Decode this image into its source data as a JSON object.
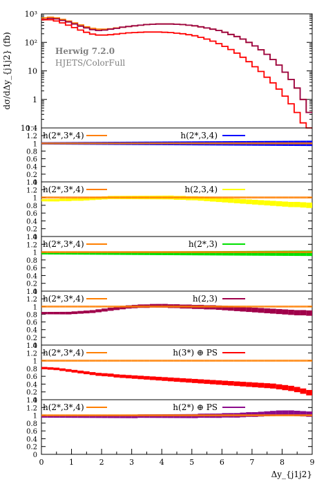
{
  "chart_data": {
    "type": "line",
    "xlabel": "Δy_{j1j2}",
    "x_ticks": [
      "0",
      "1",
      "2",
      "3",
      "4",
      "5",
      "6",
      "7",
      "8",
      "9"
    ],
    "xlim": [
      0,
      9
    ],
    "main": {
      "ylabel": "dσ/dΔy_{j1j2} (fb)",
      "yscale": "log",
      "ylim": [
        0.1,
        1000
      ],
      "y_ticks": [
        "10⁻¹",
        "1",
        "10",
        "10²",
        "10³"
      ],
      "y_tick_values": [
        0.1,
        1,
        10,
        100,
        1000
      ],
      "annotations": [
        "Herwig 7.2.0",
        "HJETS/ColorFull"
      ],
      "x": [
        0.1,
        0.3,
        0.5,
        0.7,
        0.9,
        1.1,
        1.3,
        1.5,
        1.7,
        1.9,
        2.1,
        2.3,
        2.5,
        2.7,
        2.9,
        3.1,
        3.3,
        3.5,
        3.7,
        3.9,
        4.1,
        4.3,
        4.5,
        4.7,
        4.9,
        5.1,
        5.3,
        5.5,
        5.7,
        5.9,
        6.1,
        6.3,
        6.5,
        6.7,
        6.9,
        7.1,
        7.3,
        7.5,
        7.7,
        7.9,
        8.1,
        8.3,
        8.5,
        8.7,
        8.9
      ],
      "series": [
        {
          "name": "h(2*,3*,4)",
          "color": "#ff7f00",
          "values": [
            720,
            760,
            720,
            640,
            560,
            480,
            410,
            350,
            310,
            290,
            290,
            300,
            320,
            340,
            360,
            380,
            400,
            420,
            430,
            440,
            440,
            440,
            430,
            420,
            400,
            380,
            350,
            320,
            290,
            260,
            225,
            190,
            160,
            130,
            100,
            75,
            55,
            38,
            25,
            16,
            9,
            5,
            2.5,
            1.0,
            0.35
          ]
        },
        {
          "name": "h(2,3)",
          "color": "#990044",
          "values": [
            640,
            690,
            660,
            590,
            520,
            440,
            370,
            320,
            280,
            260,
            270,
            290,
            310,
            340,
            360,
            380,
            400,
            420,
            430,
            440,
            440,
            440,
            430,
            420,
            400,
            380,
            350,
            320,
            290,
            260,
            225,
            190,
            160,
            130,
            100,
            75,
            55,
            38,
            25,
            16,
            9,
            5,
            2.5,
            1.0,
            0.35
          ]
        },
        {
          "name": "h(3*) ⊕ PS",
          "color": "#ff0000",
          "values": [
            620,
            620,
            560,
            480,
            400,
            330,
            270,
            225,
            195,
            180,
            180,
            185,
            195,
            205,
            215,
            220,
            225,
            230,
            230,
            230,
            225,
            220,
            210,
            200,
            185,
            170,
            150,
            130,
            110,
            90,
            72,
            56,
            42,
            30,
            21,
            14,
            9.5,
            6,
            3.8,
            2.3,
            1.3,
            0.7,
            0.35,
            0.15,
            0.1
          ]
        }
      ]
    },
    "ratio_panels": {
      "ylim": [
        0,
        1.4
      ],
      "y_ticks": [
        "0",
        "0.2",
        "0.4",
        "0.6",
        "0.8",
        "1",
        "1.2",
        "1.4"
      ],
      "y_tick_values": [
        0,
        0.2,
        0.4,
        0.6,
        0.8,
        1.0,
        1.2,
        1.4
      ],
      "x": [
        0.1,
        0.3,
        0.5,
        0.7,
        0.9,
        1.1,
        1.3,
        1.5,
        1.7,
        1.9,
        2.1,
        2.3,
        2.5,
        2.7,
        2.9,
        3.1,
        3.3,
        3.5,
        3.7,
        3.9,
        4.1,
        4.3,
        4.5,
        4.7,
        4.9,
        5.1,
        5.3,
        5.5,
        5.7,
        5.9,
        6.1,
        6.3,
        6.5,
        6.7,
        6.9,
        7.1,
        7.3,
        7.5,
        7.7,
        7.9,
        8.1,
        8.3,
        8.5,
        8.7,
        8.9
      ],
      "panels": [
        {
          "reference": {
            "label": "h(2*,3*,4)",
            "color": "#ff7f00",
            "values": [
              1,
              1,
              1,
              1,
              1,
              1,
              1,
              1,
              1,
              1,
              1,
              1,
              1,
              1,
              1,
              1,
              1,
              1,
              1,
              1,
              1,
              1,
              1,
              1,
              1,
              1,
              1,
              1,
              1,
              1,
              1,
              1,
              1,
              1,
              1,
              1,
              1,
              1,
              1,
              1,
              1,
              1,
              1,
              1,
              1
            ]
          },
          "comparison": {
            "label": "h(2*,3,4)",
            "color": "#0000ff",
            "values": [
              1,
              1,
              1,
              1,
              1,
              1,
              1,
              1,
              1,
              1,
              1,
              1,
              1,
              1,
              1,
              1,
              1,
              1,
              1,
              1,
              1,
              1,
              1,
              1,
              1,
              1,
              1,
              1,
              1,
              1,
              1,
              1,
              1,
              1,
              1,
              1,
              1,
              1,
              1,
              1,
              1,
              1,
              1,
              1,
              1
            ]
          }
        },
        {
          "reference": {
            "label": "h(2*,3*,4)",
            "color": "#ff7f00",
            "values": [
              1,
              1,
              1,
              1,
              1,
              1,
              1,
              1,
              1,
              1,
              1,
              1,
              1,
              1,
              1,
              1,
              1,
              1,
              1,
              1,
              1,
              1,
              1,
              1,
              1,
              1,
              1,
              1,
              1,
              1,
              1,
              1,
              1,
              1,
              1,
              1,
              1,
              1,
              1,
              1,
              1,
              1,
              1,
              1,
              1
            ]
          },
          "comparison": {
            "label": "h(2,3,4)",
            "color": "#ffff00",
            "values": [
              0.93,
              0.93,
              0.93,
              0.94,
              0.94,
              0.95,
              0.95,
              0.96,
              0.97,
              0.98,
              0.99,
              1.0,
              1.0,
              1.0,
              1.0,
              1.0,
              1.0,
              1.0,
              1.0,
              1.0,
              1.0,
              1.0,
              0.99,
              0.99,
              0.98,
              0.98,
              0.97,
              0.96,
              0.95,
              0.94,
              0.93,
              0.92,
              0.91,
              0.9,
              0.89,
              0.88,
              0.87,
              0.86,
              0.85,
              0.84,
              0.83,
              0.82,
              0.82,
              0.81,
              0.8
            ]
          }
        },
        {
          "reference": {
            "label": "h(2*,3*,4)",
            "color": "#ff7f00",
            "values": [
              1,
              1,
              1,
              1,
              1,
              1,
              1,
              1,
              1,
              1,
              1,
              1,
              1,
              1,
              1,
              1,
              1,
              1,
              1,
              1,
              1,
              1,
              1,
              1,
              1,
              1,
              1,
              1,
              1,
              1,
              1,
              1,
              1,
              1,
              1,
              1,
              1,
              1,
              1,
              1,
              1,
              1,
              1,
              1,
              1
            ]
          },
          "comparison": {
            "label": "h(2*,3)",
            "color": "#00e000",
            "values": [
              0.97,
              0.97,
              0.97,
              0.97,
              0.97,
              0.97,
              0.97,
              0.97,
              0.97,
              0.97,
              0.97,
              0.97,
              0.97,
              0.97,
              0.97,
              0.97,
              0.97,
              0.97,
              0.97,
              0.97,
              0.97,
              0.97,
              0.97,
              0.97,
              0.97,
              0.97,
              0.97,
              0.97,
              0.97,
              0.97,
              0.97,
              0.97,
              0.97,
              0.97,
              0.97,
              0.97,
              0.97,
              0.97,
              0.97,
              0.97,
              0.97,
              0.97,
              0.97,
              0.97,
              0.97
            ]
          }
        },
        {
          "reference": {
            "label": "h(2*,3*,4)",
            "color": "#ff7f00",
            "values": [
              1,
              1,
              1,
              1,
              1,
              1,
              1,
              1,
              1,
              1,
              1,
              1,
              1,
              1,
              1,
              1,
              1,
              1,
              1,
              1,
              1,
              1,
              1,
              1,
              1,
              1,
              1,
              1,
              1,
              1,
              1,
              1,
              1,
              1,
              1,
              1,
              1,
              1,
              1,
              1,
              1,
              1,
              1,
              1,
              1
            ]
          },
          "comparison": {
            "label": "h(2,3)",
            "color": "#a0004a",
            "values": [
              0.83,
              0.83,
              0.83,
              0.83,
              0.83,
              0.84,
              0.85,
              0.86,
              0.87,
              0.89,
              0.91,
              0.93,
              0.95,
              0.97,
              0.99,
              1.0,
              1.01,
              1.01,
              1.02,
              1.02,
              1.02,
              1.01,
              1.01,
              1.0,
              1.0,
              0.99,
              0.99,
              0.98,
              0.98,
              0.97,
              0.96,
              0.95,
              0.94,
              0.93,
              0.92,
              0.91,
              0.9,
              0.89,
              0.88,
              0.87,
              0.86,
              0.85,
              0.84,
              0.84,
              0.83
            ]
          }
        },
        {
          "reference": {
            "label": "h(2*,3*,4)",
            "color": "#ff7f00",
            "values": [
              1,
              1,
              1,
              1,
              1,
              1,
              1,
              1,
              1,
              1,
              1,
              1,
              1,
              1,
              1,
              1,
              1,
              1,
              1,
              1,
              1,
              1,
              1,
              1,
              1,
              1,
              1,
              1,
              1,
              1,
              1,
              1,
              1,
              1,
              1,
              1,
              1,
              1,
              1,
              1,
              1,
              1,
              1,
              1,
              1
            ]
          },
          "comparison": {
            "label": "h(3*) ⊕ PS",
            "color": "#ff0000",
            "values": [
              0.81,
              0.8,
              0.79,
              0.77,
              0.75,
              0.73,
              0.71,
              0.69,
              0.67,
              0.65,
              0.64,
              0.63,
              0.61,
              0.6,
              0.59,
              0.58,
              0.57,
              0.56,
              0.55,
              0.54,
              0.53,
              0.52,
              0.51,
              0.5,
              0.49,
              0.48,
              0.47,
              0.46,
              0.45,
              0.44,
              0.43,
              0.42,
              0.41,
              0.4,
              0.39,
              0.38,
              0.37,
              0.36,
              0.35,
              0.33,
              0.31,
              0.29,
              0.26,
              0.22,
              0.18
            ]
          }
        },
        {
          "reference": {
            "label": "h(2*,3*,4)",
            "color": "#ff7f00",
            "values": [
              1,
              1,
              1,
              1,
              1,
              1,
              1,
              1,
              1,
              1,
              1,
              1,
              1,
              1,
              1,
              1,
              1,
              1,
              1,
              1,
              1,
              1,
              1,
              1,
              1,
              1,
              1,
              1,
              1,
              1,
              1,
              1,
              1,
              1,
              1,
              1,
              1,
              1,
              1,
              1,
              1,
              1,
              1,
              1,
              1
            ]
          },
          "comparison": {
            "label": "h(2*) ⊕ PS",
            "color": "#8b0a8b",
            "values": [
              0.97,
              0.97,
              0.97,
              0.97,
              0.97,
              0.97,
              0.97,
              0.97,
              0.97,
              0.97,
              0.97,
              0.97,
              0.97,
              0.97,
              0.97,
              0.97,
              0.98,
              0.98,
              0.98,
              0.98,
              0.98,
              0.98,
              0.98,
              0.98,
              0.98,
              0.98,
              0.99,
              0.99,
              0.99,
              0.99,
              1.0,
              1.0,
              1.0,
              1.01,
              1.02,
              1.02,
              1.03,
              1.04,
              1.05,
              1.06,
              1.06,
              1.06,
              1.05,
              1.04,
              1.03
            ]
          }
        }
      ]
    }
  }
}
